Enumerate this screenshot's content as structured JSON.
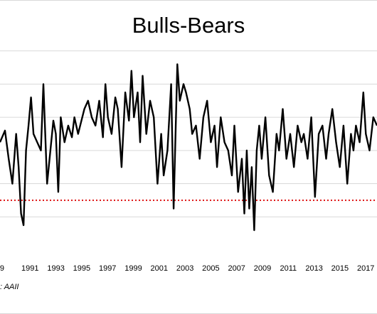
{
  "chart_data": {
    "type": "line",
    "title": "Bulls-Bears",
    "source": ": AAII",
    "x_tick_labels": [
      "9",
      "1991",
      "1993",
      "1995",
      "1997",
      "1999",
      "2001",
      "2003",
      "2005",
      "2007",
      "2009",
      "2011",
      "2013",
      "2015",
      "2017",
      "2"
    ],
    "xlim": [
      1988.5,
      2018.9
    ],
    "ylim": [
      -0.6,
      0.65
    ],
    "yticks": [
      -0.4,
      -0.2,
      0.0,
      0.2,
      0.4,
      0.6
    ],
    "grid": true,
    "reference_line": {
      "value": -0.3,
      "style": "dotted",
      "color": "#e02020"
    },
    "series": [
      {
        "color": "#000000",
        "x": [
          1988.5,
          1988.9,
          1989.2,
          1989.5,
          1989.8,
          1990.0,
          1990.2,
          1990.4,
          1990.6,
          1990.8,
          1991.0,
          1991.2,
          1991.5,
          1991.8,
          1992.0,
          1992.3,
          1992.5,
          1992.8,
          1993.0,
          1993.2,
          1993.4,
          1993.7,
          1994.0,
          1994.3,
          1994.5,
          1994.8,
          1995.0,
          1995.3,
          1995.6,
          1995.9,
          1996.2,
          1996.5,
          1996.8,
          1997.0,
          1997.2,
          1997.5,
          1997.8,
          1998.0,
          1998.3,
          1998.6,
          1998.9,
          1999.1,
          1999.3,
          1999.6,
          1999.8,
          2000.0,
          2000.3,
          2000.6,
          2000.9,
          2001.2,
          2001.5,
          2001.7,
          2002.0,
          2002.3,
          2002.5,
          2002.8,
          2003.0,
          2003.3,
          2003.5,
          2003.8,
          2004.0,
          2004.3,
          2004.6,
          2004.9,
          2005.2,
          2005.5,
          2005.8,
          2006.0,
          2006.3,
          2006.6,
          2006.9,
          2007.2,
          2007.4,
          2007.7,
          2008.0,
          2008.2,
          2008.4,
          2008.6,
          2008.8,
          2009.0,
          2009.2,
          2009.4,
          2009.6,
          2009.9,
          2010.2,
          2010.5,
          2010.8,
          2011.0,
          2011.3,
          2011.6,
          2011.9,
          2012.2,
          2012.5,
          2012.8,
          2013.0,
          2013.3,
          2013.6,
          2013.9,
          2014.2,
          2014.5,
          2014.8,
          2015.0,
          2015.3,
          2015.6,
          2015.9,
          2016.2,
          2016.5,
          2016.8,
          2017.0,
          2017.2,
          2017.5,
          2017.8,
          2018.0,
          2018.3,
          2018.6,
          2018.9
        ],
        "values": [
          0.05,
          0.12,
          -0.05,
          -0.2,
          0.1,
          -0.1,
          -0.38,
          -0.45,
          0.0,
          0.15,
          0.32,
          0.1,
          0.05,
          0.0,
          0.4,
          -0.2,
          -0.05,
          0.18,
          0.1,
          -0.25,
          0.2,
          0.05,
          0.15,
          0.08,
          0.2,
          0.1,
          0.16,
          0.25,
          0.3,
          0.2,
          0.15,
          0.3,
          0.08,
          0.4,
          0.2,
          0.1,
          0.32,
          0.25,
          -0.1,
          0.35,
          0.18,
          0.48,
          0.2,
          0.35,
          0.05,
          0.45,
          0.1,
          0.3,
          0.2,
          -0.2,
          0.1,
          -0.15,
          0.0,
          0.4,
          -0.35,
          0.52,
          0.3,
          0.4,
          0.35,
          0.25,
          0.1,
          0.15,
          -0.05,
          0.2,
          0.3,
          0.05,
          0.15,
          -0.1,
          0.2,
          0.05,
          0.0,
          -0.15,
          0.15,
          -0.25,
          -0.05,
          -0.38,
          0.0,
          -0.35,
          -0.1,
          -0.48,
          0.0,
          0.15,
          -0.05,
          0.2,
          -0.15,
          -0.25,
          0.1,
          0.0,
          0.25,
          -0.05,
          0.1,
          -0.1,
          0.15,
          0.05,
          0.1,
          -0.05,
          0.2,
          -0.28,
          0.1,
          0.15,
          -0.05,
          0.1,
          0.25,
          0.05,
          -0.1,
          0.15,
          -0.2,
          0.1,
          0.0,
          0.15,
          0.05,
          0.35,
          0.1,
          0.0,
          0.2,
          0.15
        ]
      }
    ]
  }
}
